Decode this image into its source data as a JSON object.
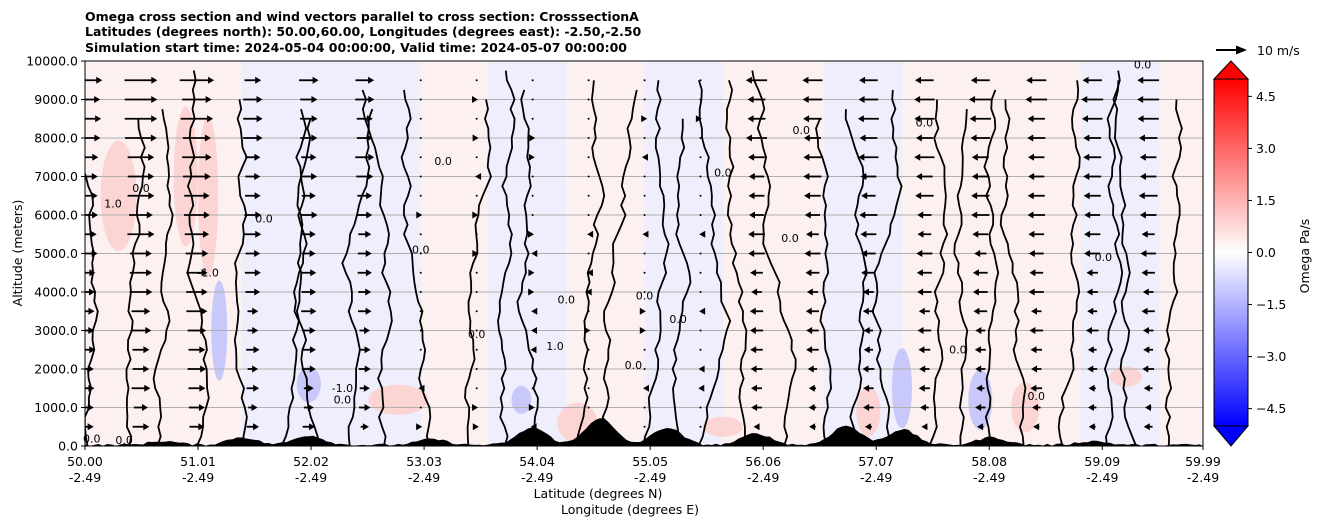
{
  "chart_data": {
    "type": "heatmap",
    "title_lines": [
      "Omega cross section and wind vectors parallel to cross section: CrosssectionA",
      "Latitudes (degrees north): 50.00,60.00, Longitudes (degrees east): -2.50,-2.50",
      "Simulation start time: 2024-05-04 00:00:00, Valid time: 2024-05-07 00:00:00"
    ],
    "xlabel_line1": "Latitude (degrees N)",
    "xlabel_line2": "Longitude (degrees E)",
    "ylabel": "Altitude (meters)",
    "x_range": [
      50.0,
      59.99
    ],
    "ylim": [
      0,
      10000
    ],
    "y_ticks": [
      "0.0",
      "1000.0",
      "2000.0",
      "3000.0",
      "4000.0",
      "5000.0",
      "6000.0",
      "7000.0",
      "8000.0",
      "9000.0",
      "10000.0"
    ],
    "x_ticks": [
      {
        "lat": 50.0,
        "lat_label": "50.00",
        "lon_label": "-2.49"
      },
      {
        "lat": 51.01,
        "lat_label": "51.01",
        "lon_label": "-2.49"
      },
      {
        "lat": 52.02,
        "lat_label": "52.02",
        "lon_label": "-2.49"
      },
      {
        "lat": 53.03,
        "lat_label": "53.03",
        "lon_label": "-2.49"
      },
      {
        "lat": 54.04,
        "lat_label": "54.04",
        "lon_label": "-2.49"
      },
      {
        "lat": 55.05,
        "lat_label": "55.05",
        "lon_label": "-2.49"
      },
      {
        "lat": 56.06,
        "lat_label": "56.06",
        "lon_label": "-2.49"
      },
      {
        "lat": 57.07,
        "lat_label": "57.07",
        "lon_label": "-2.49"
      },
      {
        "lat": 58.08,
        "lat_label": "58.08",
        "lon_label": "-2.49"
      },
      {
        "lat": 59.09,
        "lat_label": "59.09",
        "lon_label": "-2.49"
      },
      {
        "lat": 59.99,
        "lat_label": "59.99",
        "lon_label": "-2.49"
      }
    ],
    "grid": "horizontal",
    "colorbar": {
      "label": "Omega Pa/s",
      "range": [
        -5,
        5
      ],
      "ticks": [
        "4.5",
        "3.0",
        "1.5",
        "0.0",
        "−1.5",
        "−3.0",
        "−4.5"
      ],
      "tick_values": [
        4.5,
        3.0,
        1.5,
        0.0,
        -1.5,
        -3.0,
        -4.5
      ],
      "extend": "both",
      "colormap": "bwr",
      "colors": {
        "negative": "#0000ff",
        "zero": "#ffffff",
        "positive": "#ff0000"
      }
    },
    "quiver_key": {
      "label": "10 m/s",
      "value": 10
    },
    "contour_level_label": "0.0",
    "contour_level_labels_other": [
      "1.0",
      "-1.0",
      "-1.0"
    ],
    "wind_vectors": [
      {
        "lat": 50.0,
        "alt": 9500,
        "u": 0
      },
      {
        "lat": 50.5,
        "alt": 9000,
        "u": 10
      },
      {
        "lat": 50.5,
        "alt": 8500,
        "u": 14
      },
      {
        "lat": 50.5,
        "alt": 8000,
        "u": 14
      },
      {
        "lat": 50.5,
        "alt": 7500,
        "u": 12
      },
      {
        "lat": 51.0,
        "alt": 8000,
        "u": 10
      },
      {
        "lat": 51.2,
        "alt": 9000,
        "u": 9
      },
      {
        "lat": 56.0,
        "alt": 9500,
        "u": -4
      },
      {
        "lat": 57.0,
        "alt": 9500,
        "u": -8
      },
      {
        "lat": 58.0,
        "alt": 9500,
        "u": -8
      },
      {
        "lat": 59.0,
        "alt": 9500,
        "u": -8
      },
      {
        "lat": 59.5,
        "alt": 9500,
        "u": -6
      }
    ],
    "terrain_peaks": [
      {
        "lat": 50.7,
        "alt": 100
      },
      {
        "lat": 51.4,
        "alt": 200
      },
      {
        "lat": 52.0,
        "alt": 250
      },
      {
        "lat": 53.1,
        "alt": 150
      },
      {
        "lat": 54.0,
        "alt": 450
      },
      {
        "lat": 54.6,
        "alt": 700
      },
      {
        "lat": 55.2,
        "alt": 450
      },
      {
        "lat": 56.0,
        "alt": 300
      },
      {
        "lat": 56.8,
        "alt": 500
      },
      {
        "lat": 57.3,
        "alt": 400
      },
      {
        "lat": 58.1,
        "alt": 200
      },
      {
        "lat": 59.0,
        "alt": 100
      }
    ]
  }
}
